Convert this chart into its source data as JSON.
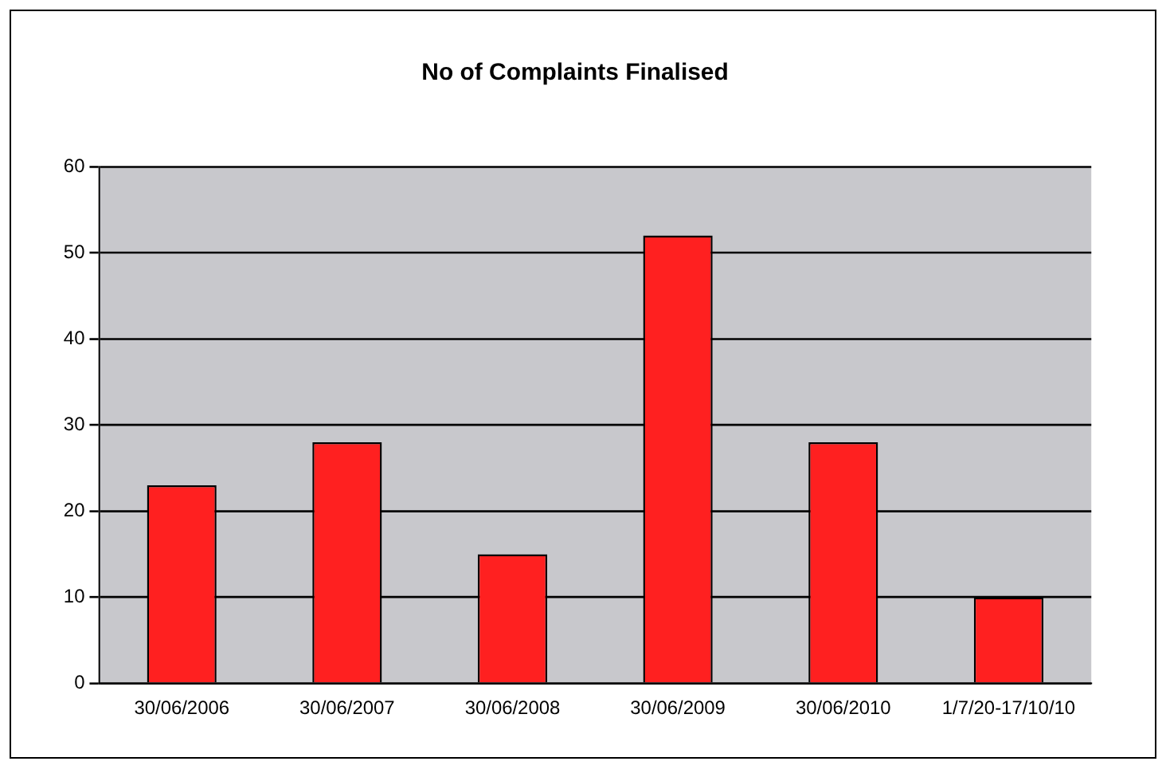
{
  "chart_data": {
    "type": "bar",
    "title": "No of Complaints Finalised",
    "categories": [
      "30/06/2006",
      "30/06/2007",
      "30/06/2008",
      "30/06/2009",
      "30/06/2010",
      "1/7/20-17/10/10"
    ],
    "values": [
      23,
      28,
      15,
      52,
      28,
      10
    ],
    "color": "#ff2020",
    "ylim": [
      0,
      60
    ],
    "yticks": [
      0,
      10,
      20,
      30,
      40,
      50,
      60
    ],
    "grid": "y"
  }
}
